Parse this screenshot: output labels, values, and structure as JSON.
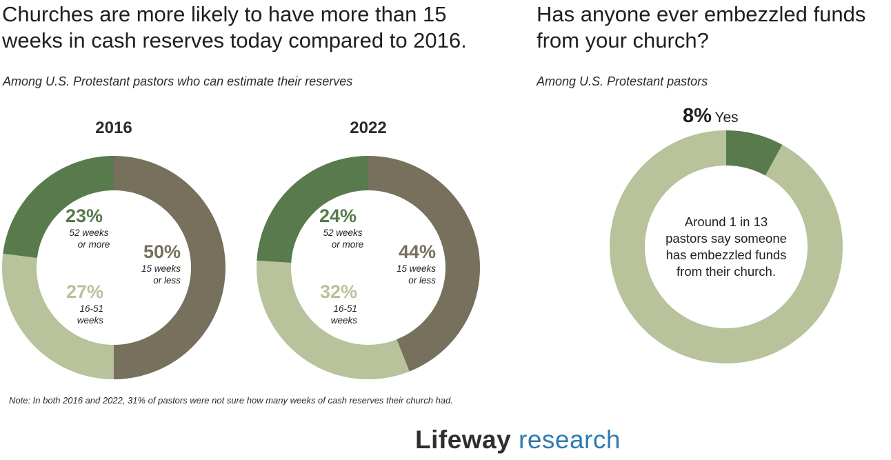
{
  "left": {
    "title_line1": "Churches are more likely to have more than 15",
    "title_line2": "weeks in cash reserves today compared to 2016.",
    "subtitle": "Among U.S. Protestant pastors who can estimate their reserves"
  },
  "right": {
    "title_line1": "Has anyone ever embezzled funds",
    "title_line2": "from your church?",
    "subtitle": "Among U.S. Protestant pastors"
  },
  "note": "Note: In both 2016 and 2022, 31% of pastors were not sure how many weeks of cash reserves their church had.",
  "logo": {
    "part1": "Lifeway",
    "part2": "research"
  },
  "colors": {
    "dark_green": "#587a4c",
    "light_green": "#b8c29b",
    "gray_olive": "#76705d"
  },
  "chart_data": [
    {
      "type": "pie",
      "title": "2016",
      "slices": [
        {
          "label_pct": "50%",
          "label_line1": "15 weeks",
          "label_line2": "or less",
          "value": 50,
          "color": "#76705d"
        },
        {
          "label_pct": "27%",
          "label_line1": "16-51",
          "label_line2": "weeks",
          "value": 27,
          "color": "#b8c29b"
        },
        {
          "label_pct": "23%",
          "label_line1": "52 weeks",
          "label_line2": "or more",
          "value": 23,
          "color": "#587a4c"
        }
      ]
    },
    {
      "type": "pie",
      "title": "2022",
      "slices": [
        {
          "label_pct": "44%",
          "label_line1": "15 weeks",
          "label_line2": "or less",
          "value": 44,
          "color": "#76705d"
        },
        {
          "label_pct": "32%",
          "label_line1": "16-51",
          "label_line2": "weeks",
          "value": 32,
          "color": "#b8c29b"
        },
        {
          "label_pct": "24%",
          "label_line1": "52 weeks",
          "label_line2": "or more",
          "value": 24,
          "color": "#587a4c"
        }
      ]
    },
    {
      "type": "pie",
      "title": "",
      "slices": [
        {
          "label_pct": "8%",
          "label_line1": "Yes",
          "label_line2": "",
          "value": 8,
          "color": "#587a4c"
        },
        {
          "label_pct": "",
          "label_line1": "",
          "label_line2": "",
          "value": 92,
          "color": "#b8c29b"
        }
      ],
      "center_line1": "Around 1 in 13",
      "center_line2": "pastors say someone",
      "center_line3": "has embezzled funds",
      "center_line4": "from their church."
    }
  ]
}
